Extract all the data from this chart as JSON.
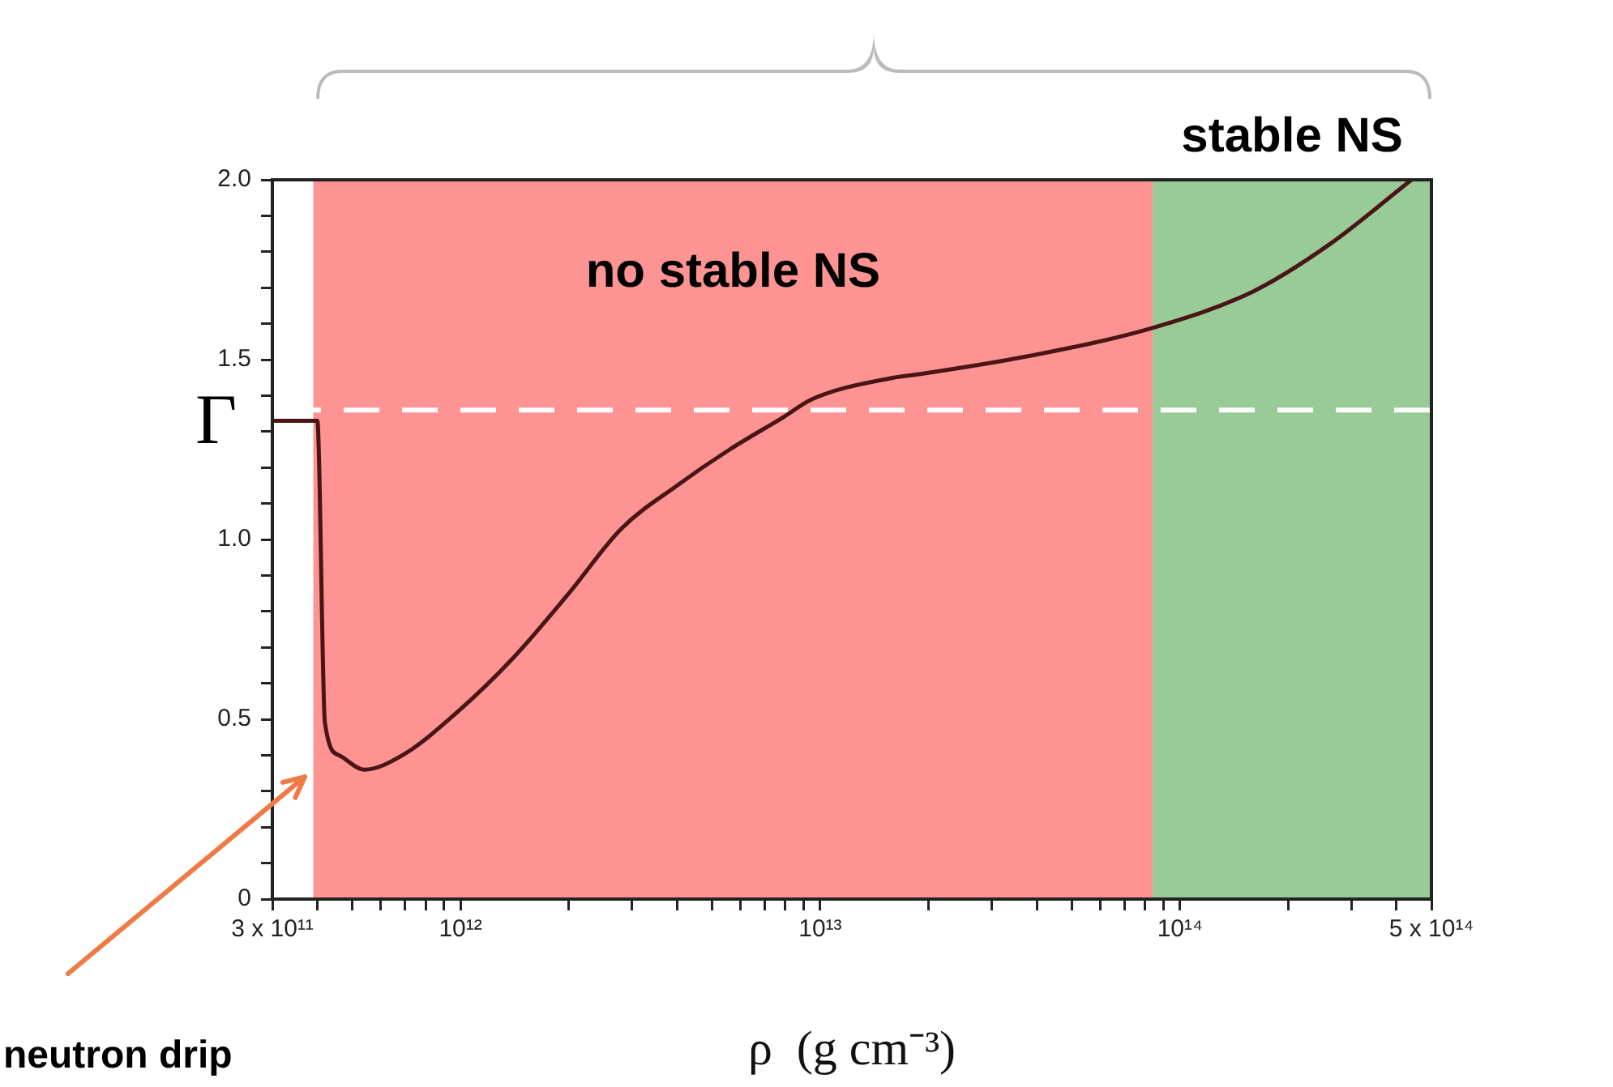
{
  "chart_data": {
    "type": "line",
    "xlabel": "ρ  (g cm⁻³)",
    "ylabel": "Γ",
    "log": "x",
    "x": [
      300000000000.0,
      400000000000.0,
      420000000000.0,
      460000000000.0,
      540000000000.0,
      690000000000.0,
      980000000000.0,
      1400000000000.0,
      2000000000000.0,
      2800000000000.0,
      4000000000000.0,
      5600000000000.0,
      7900000000000.0,
      9500000000000.0,
      16000000000000.0,
      19000000000000.0,
      38000000000000.0,
      85000000000000.0,
      160000000000000.0,
      260000000000000.0,
      440000000000000.0
    ],
    "series": [
      {
        "color": "#4a1515",
        "values": [
          1.33,
          1.33,
          0.49,
          0.4,
          0.36,
          0.4,
          0.52,
          0.67,
          0.85,
          1.03,
          1.15,
          1.25,
          1.34,
          1.39,
          1.45,
          1.46,
          1.51,
          1.59,
          1.69,
          1.82,
          2.0
        ]
      }
    ],
    "xlim": [
      300000000000.0,
      500000000000000.0
    ],
    "xticks": [
      {
        "value": 300000000000.0,
        "label": "3 x 10¹¹"
      },
      {
        "value": 400000000000.0,
        "label": null
      },
      {
        "value": 500000000000.0,
        "label": null
      },
      {
        "value": 600000000000.0,
        "label": null
      },
      {
        "value": 700000000000.0,
        "label": null
      },
      {
        "value": 800000000000.0,
        "label": null
      },
      {
        "value": 900000000000.0,
        "label": null
      },
      {
        "value": 1000000000000.0,
        "label": "10¹²"
      },
      {
        "value": 2000000000000.0,
        "label": null
      },
      {
        "value": 3000000000000.0,
        "label": null
      },
      {
        "value": 4000000000000.0,
        "label": null
      },
      {
        "value": 5000000000000.0,
        "label": null
      },
      {
        "value": 6000000000000.0,
        "label": null
      },
      {
        "value": 7000000000000.0,
        "label": null
      },
      {
        "value": 8000000000000.0,
        "label": null
      },
      {
        "value": 9000000000000.0,
        "label": null
      },
      {
        "value": 10000000000000.0,
        "label": "10¹³"
      },
      {
        "value": 20000000000000.0,
        "label": null
      },
      {
        "value": 30000000000000.0,
        "label": null
      },
      {
        "value": 40000000000000.0,
        "label": null
      },
      {
        "value": 50000000000000.0,
        "label": null
      },
      {
        "value": 60000000000000.0,
        "label": null
      },
      {
        "value": 70000000000000.0,
        "label": null
      },
      {
        "value": 80000000000000.0,
        "label": null
      },
      {
        "value": 90000000000000.0,
        "label": null
      },
      {
        "value": 100000000000000.0,
        "label": "10¹⁴"
      },
      {
        "value": 200000000000000.0,
        "label": null
      },
      {
        "value": 300000000000000.0,
        "label": null
      },
      {
        "value": 400000000000000.0,
        "label": null
      },
      {
        "value": 500000000000000.0,
        "label": "5 x 10¹⁴"
      }
    ],
    "ylim": [
      0,
      2
    ],
    "yticks": [
      0,
      {
        "value": 0.1,
        "label": null
      },
      {
        "value": 0.2,
        "label": null
      },
      {
        "value": 0.3,
        "label": null
      },
      {
        "value": 0.4,
        "label": null
      },
      0.5,
      {
        "value": 0.6,
        "label": null
      },
      {
        "value": 0.7,
        "label": null
      },
      {
        "value": 0.8,
        "label": null
      },
      {
        "value": 0.9,
        "label": null
      },
      {
        "value": 1,
        "label": "1.0"
      },
      {
        "value": 1.1,
        "label": null
      },
      {
        "value": 1.2,
        "label": null
      },
      {
        "value": 1.3,
        "label": null
      },
      {
        "value": 1.4,
        "label": null
      },
      1.5,
      {
        "value": 1.6,
        "label": null
      },
      {
        "value": 1.7,
        "label": null
      },
      {
        "value": 1.8,
        "label": null
      },
      {
        "value": 1.9,
        "label": null
      },
      {
        "value": 2,
        "label": "2.0"
      }
    ],
    "bands": [
      {
        "axis": "x",
        "from": 390000000000.0,
        "to": 84000000000000.0,
        "label": "no stable NS",
        "color": "#fe9393"
      },
      {
        "axis": "x",
        "from": 84000000000000.0,
        "to": 500000000000000.0,
        "label": "stable NS",
        "color": "#98cb97"
      }
    ],
    "ref_lines": [
      {
        "axis": "y",
        "value": 1.36,
        "color": "#ffffff",
        "line_style": "dashed"
      }
    ],
    "annotations": [
      "neutron drip"
    ],
    "marker": "none",
    "line_style": "solid",
    "grid": false,
    "legend": false
  }
}
